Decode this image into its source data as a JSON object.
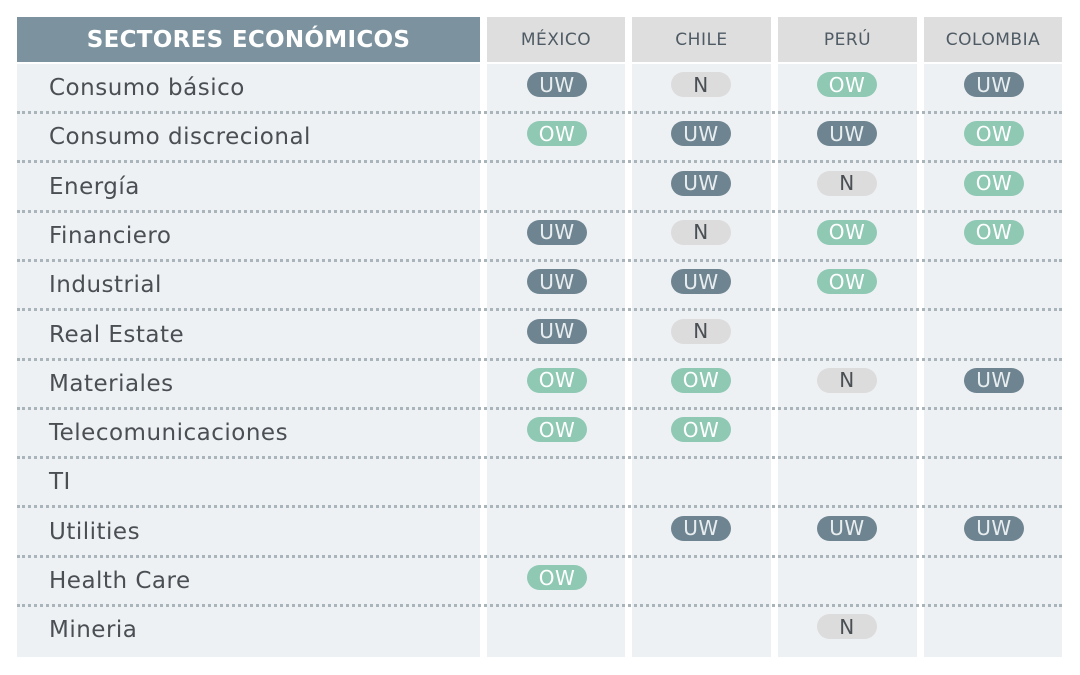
{
  "header": {
    "title": "SECTORES ECONÓMICOS"
  },
  "countries": [
    "MÉXICO",
    "CHILE",
    "PERÚ",
    "COLOMBIA"
  ],
  "rows": [
    {
      "sector": "Consumo básico",
      "ratings": [
        "UW",
        "N",
        "OW",
        "UW"
      ]
    },
    {
      "sector": "Consumo discrecional",
      "ratings": [
        "OW",
        "UW",
        "UW",
        "OW"
      ]
    },
    {
      "sector": "Energía",
      "ratings": [
        "",
        "UW",
        "N",
        "OW"
      ]
    },
    {
      "sector": "Financiero",
      "ratings": [
        "UW",
        "N",
        "OW",
        "OW"
      ]
    },
    {
      "sector": "Industrial",
      "ratings": [
        "UW",
        "UW",
        "OW",
        ""
      ]
    },
    {
      "sector": "Real Estate",
      "ratings": [
        "UW",
        "N",
        "",
        ""
      ]
    },
    {
      "sector": "Materiales",
      "ratings": [
        "OW",
        "OW",
        "N",
        "UW"
      ]
    },
    {
      "sector": "Telecomunicaciones",
      "ratings": [
        "OW",
        "OW",
        "",
        ""
      ]
    },
    {
      "sector": "TI",
      "ratings": [
        "",
        "",
        "",
        ""
      ]
    },
    {
      "sector": "Utilities",
      "ratings": [
        "",
        "UW",
        "UW",
        "UW"
      ]
    },
    {
      "sector": "Health Care",
      "ratings": [
        "OW",
        "",
        "",
        ""
      ]
    },
    {
      "sector": "Mineria",
      "ratings": [
        "",
        "",
        "N",
        ""
      ]
    }
  ],
  "colors": {
    "UW": "#6e8591",
    "OW": "#8fc9b4",
    "N": "#dcdcdc",
    "header": "#7c939f"
  }
}
